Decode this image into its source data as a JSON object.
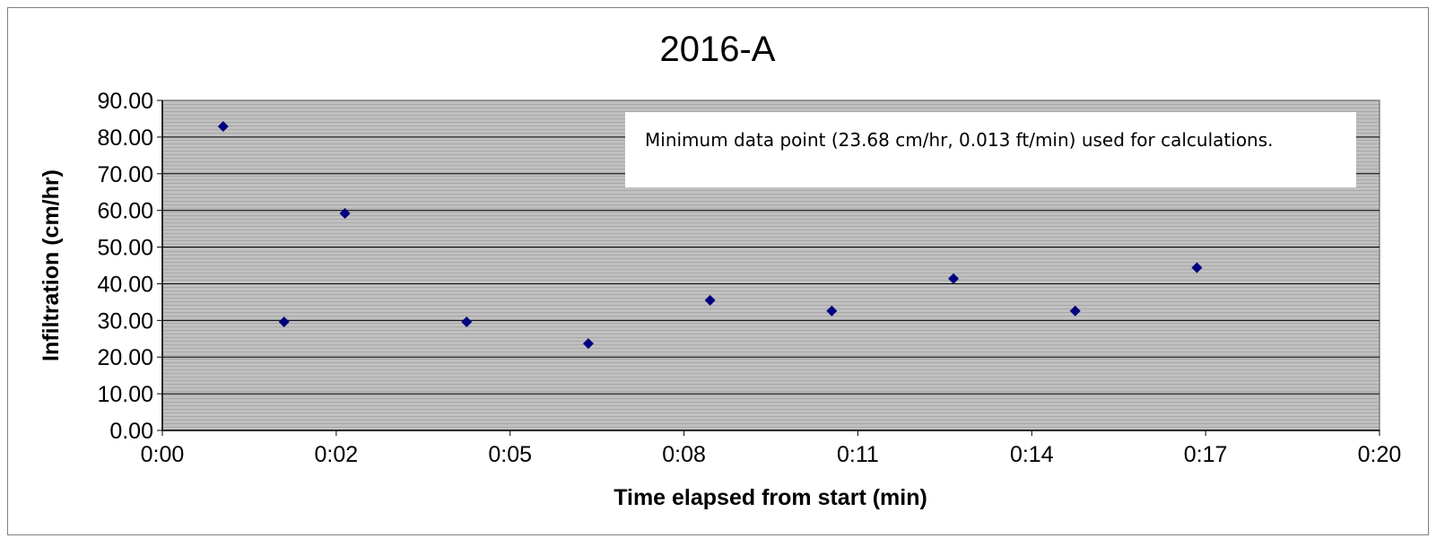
{
  "chart_data": {
    "type": "scatter",
    "title": "2016-A",
    "xlabel": "Time elapsed from start (min)",
    "ylabel": "Infiltration (cm/hr)",
    "x_ticks": [
      "0:00",
      "0:02",
      "0:05",
      "0:08",
      "0:11",
      "0:14",
      "0:17",
      "0:20"
    ],
    "y_ticks": [
      "0.00",
      "10.00",
      "20.00",
      "30.00",
      "40.00",
      "50.00",
      "60.00",
      "70.00",
      "80.00",
      "90.00"
    ],
    "xlim": [
      "0:00",
      "0:20"
    ],
    "ylim": [
      0,
      90
    ],
    "grid": true,
    "legend": "none",
    "marker": "diamond",
    "series": [
      {
        "points": [
          {
            "x": "0:01",
            "y": 82.9
          },
          {
            "x": "0:02",
            "y": 29.6
          },
          {
            "x": "0:03",
            "y": 59.2
          },
          {
            "x": "0:05",
            "y": 29.6
          },
          {
            "x": "0:07",
            "y": 23.68
          },
          {
            "x": "0:09",
            "y": 35.5
          },
          {
            "x": "0:11",
            "y": 32.6
          },
          {
            "x": "0:13",
            "y": 41.4
          },
          {
            "x": "0:15",
            "y": 32.6
          },
          {
            "x": "0:17",
            "y": 44.4
          }
        ]
      }
    ],
    "annotation": "Minimum data point (23.68 cm/hr, 0.013 ft/min) used for calculations.",
    "colors": {
      "plot_background": "#c0c0c0",
      "marker": "#000080",
      "gridline": "#000000"
    }
  }
}
